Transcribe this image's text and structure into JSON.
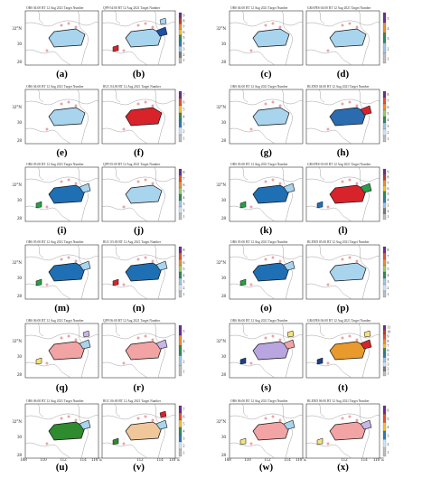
{
  "figure": {
    "axis_ticks": {
      "y": [
        "32°N",
        "30",
        "28"
      ],
      "x_left": [
        "108",
        "110",
        "112",
        "114",
        "116°E"
      ],
      "x_right": [
        "108",
        "110",
        "112",
        "114",
        "116°E"
      ]
    },
    "panels": [
      {
        "letter": "(a)",
        "title": "OBS 04:00 BT 12 Aug 2021 Target Number",
        "colorbar": null,
        "colors": [
          "#a9d4ee"
        ]
      },
      {
        "letter": "(b)",
        "title": "QPF 04:00 BT 12 Aug 2021 Target Number",
        "colorbar": [
          "9",
          "8",
          "7",
          "6",
          "5",
          "4",
          "3",
          "2",
          "1"
        ],
        "colors": [
          "#a9d4ee",
          "#1f4fa8",
          "#d8232a",
          "#a9d4ee"
        ]
      },
      {
        "letter": "(c)",
        "title": "OBS 04:00 BT 12 Aug 2021 Target Number",
        "colorbar": null,
        "colors": [
          "#a9d4ee"
        ]
      },
      {
        "letter": "(d)",
        "title": "GRAPES 04:00 BT 12 Aug 2021 Target Number",
        "colorbar": [
          "5",
          "4",
          "3",
          "2",
          "1"
        ],
        "colors": [
          "#a9d4ee"
        ]
      },
      {
        "letter": "(e)",
        "title": "OBS 04:00 BT 12 Aug 2021 Target Number",
        "colorbar": null,
        "colors": [
          "#a9d4ee"
        ]
      },
      {
        "letter": "(f)",
        "title": "RUC 04:00 BT 12 Aug 2021 Target Number",
        "colorbar": [
          "7",
          "6",
          "5",
          "4",
          "3",
          "2",
          "1"
        ],
        "colors": [
          "#d8232a"
        ]
      },
      {
        "letter": "(g)",
        "title": "OBS 04:00 BT 12 Aug 2021 Target Number",
        "colorbar": null,
        "colors": [
          "#a9d4ee"
        ]
      },
      {
        "letter": "(h)",
        "title": "BLEND 04:00 BT 12 Aug 2021 Target Number",
        "colorbar": [
          "8",
          "7",
          "6",
          "5",
          "4",
          "3",
          "2",
          "1"
        ],
        "colors": [
          "#2b6cb0",
          "#d8232a"
        ]
      },
      {
        "letter": "(i)",
        "title": "OBS 05:00 BT 12 Aug 2021 Target Number",
        "colorbar": null,
        "colors": [
          "#1f6fb5",
          "#a9d4ee",
          "#2a9d4a"
        ]
      },
      {
        "letter": "(j)",
        "title": "QPF 05:00 BT 12 Aug 2021 Target Number",
        "colorbar": [
          "8",
          "7",
          "6",
          "5",
          "4",
          "3",
          "2",
          "1"
        ],
        "colors": [
          "#a9d4ee"
        ]
      },
      {
        "letter": "(k)",
        "title": "OBS 05:00 BT 12 Aug 2021 Target Number",
        "colorbar": null,
        "colors": [
          "#1f6fb5",
          "#a9d4ee",
          "#2a9d4a"
        ]
      },
      {
        "letter": "(l)",
        "title": "GRAPES 05:00 BT 12 Aug 2021 Target Number",
        "colorbar": [
          "9",
          "8",
          "7",
          "6",
          "5",
          "4",
          "3",
          "2",
          "1"
        ],
        "colors": [
          "#d8232a",
          "#2a9d4a",
          "#1f6fb5"
        ]
      },
      {
        "letter": "(m)",
        "title": "OBS 05:00 BT 12 Aug 2021 Target Number",
        "colorbar": null,
        "colors": [
          "#1f6fb5",
          "#a9d4ee",
          "#2a9d4a"
        ]
      },
      {
        "letter": "(n)",
        "title": "RUC 05:00 BT 12 Aug 2021 Target Number",
        "colorbar": [
          "8",
          "7",
          "6",
          "5",
          "4",
          "3",
          "2",
          "1"
        ],
        "colors": [
          "#1f6fb5",
          "#a9d4ee",
          "#d8232a"
        ]
      },
      {
        "letter": "(o)",
        "title": "OBS 05:00 BT 12 Aug 2021 Target Number",
        "colorbar": null,
        "colors": [
          "#1f6fb5",
          "#a9d4ee",
          "#2a9d4a"
        ]
      },
      {
        "letter": "(p)",
        "title": "BLEND 05:00 BT 12 Aug 2021 Target Number",
        "colorbar": [
          "8",
          "7",
          "6",
          "5",
          "4",
          "3",
          "2",
          "1"
        ],
        "colors": [
          "#a9d4ee"
        ]
      },
      {
        "letter": "(q)",
        "title": "OBS 06:00 BT 12 Aug 2021 Target Number",
        "colorbar": null,
        "colors": [
          "#f2a3a3",
          "#a9d4ee",
          "#f4e27a",
          "#c7b6e6"
        ]
      },
      {
        "letter": "(r)",
        "title": "QPF 06:00 BT 12 Aug 2021 Target Number",
        "colorbar": [
          "5",
          "4",
          "3",
          "2",
          "1"
        ],
        "colors": [
          "#f2a3a3",
          "#c7b6e6"
        ]
      },
      {
        "letter": "(s)",
        "title": "OBS 06:00 BT 12 Aug 2021 Target Number",
        "colorbar": null,
        "colors": [
          "#b9a6e0",
          "#f2a3a3",
          "#1f3f8a",
          "#f4e27a"
        ]
      },
      {
        "letter": "(t)",
        "title": "GRAPES 06:00 BT 12 Aug 2021 Target Number",
        "colorbar": [
          "11",
          "10",
          "9",
          "8",
          "7",
          "6",
          "5",
          "4",
          "3",
          "2",
          "1"
        ],
        "colors": [
          "#e89a2c",
          "#d8232a",
          "#1f3f8a",
          "#f4e27a",
          "#7a4ab0"
        ]
      },
      {
        "letter": "(u)",
        "title": "OBS 06:00 BT 12 Aug 2021 Target Number",
        "colorbar": null,
        "colors": [
          "#2e8b2e",
          "#a9d4ee"
        ]
      },
      {
        "letter": "(v)",
        "title": "RUC 06:00 BT 12 Aug 2021 Target Number",
        "colorbar": [
          "7",
          "6",
          "5",
          "4",
          "3",
          "2",
          "1"
        ],
        "colors": [
          "#f0c79a",
          "#a9d4ee",
          "#2e8b2e",
          "#d8232a"
        ]
      },
      {
        "letter": "(w)",
        "title": "OBS 06:00 BT 12 Aug 2021 Target Number",
        "colorbar": null,
        "colors": [
          "#f2a3a3",
          "#a9d4ee",
          "#f4e27a"
        ]
      },
      {
        "letter": "(x)",
        "title": "BLEND 06:00 BT 12 Aug 2021 Target Number",
        "colorbar": [
          "6",
          "5",
          "4",
          "3",
          "2",
          "1"
        ],
        "colors": [
          "#f2a3a3",
          "#c7b6e6",
          "#f4e27a"
        ]
      }
    ]
  }
}
